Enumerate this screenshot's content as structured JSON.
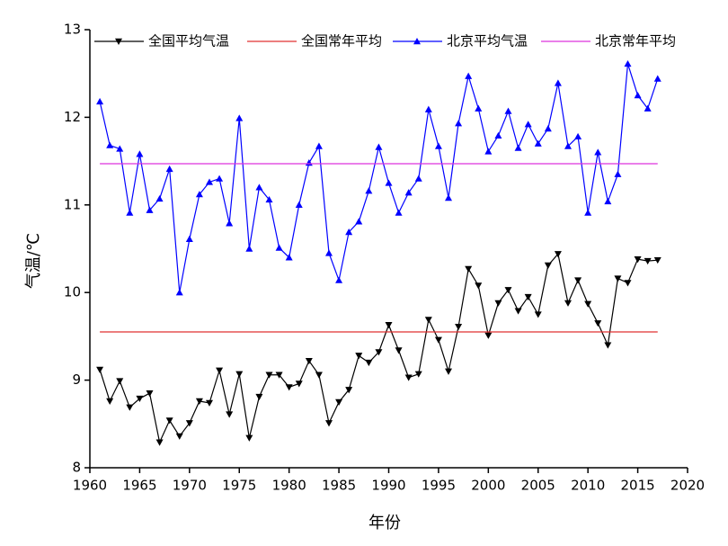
{
  "chart_data": {
    "type": "line",
    "x_label": "年份",
    "y_label": "气温/℃",
    "x": [
      1961,
      1962,
      1963,
      1964,
      1965,
      1966,
      1967,
      1968,
      1969,
      1970,
      1971,
      1972,
      1973,
      1974,
      1975,
      1976,
      1977,
      1978,
      1979,
      1980,
      1981,
      1982,
      1983,
      1984,
      1985,
      1986,
      1987,
      1988,
      1989,
      1990,
      1991,
      1992,
      1993,
      1994,
      1995,
      1996,
      1997,
      1998,
      1999,
      2000,
      2001,
      2002,
      2003,
      2004,
      2005,
      2006,
      2007,
      2008,
      2009,
      2010,
      2011,
      2012,
      2013,
      2014,
      2015,
      2016,
      2017
    ],
    "xlim": [
      1960,
      2020
    ],
    "xticks": [
      1960,
      1965,
      1970,
      1975,
      1980,
      1985,
      1990,
      1995,
      2000,
      2005,
      2010,
      2015,
      2020
    ],
    "ylim": [
      8,
      13
    ],
    "yticks": [
      8,
      9,
      10,
      11,
      12,
      13
    ],
    "grid": false,
    "legend": "top",
    "series": [
      {
        "name": "全国平均气温",
        "color": "#000000",
        "marker": "down",
        "values": [
          9.12,
          8.76,
          8.99,
          8.69,
          8.79,
          8.85,
          8.29,
          8.54,
          8.36,
          8.51,
          8.76,
          8.74,
          9.11,
          8.61,
          9.07,
          8.34,
          8.81,
          9.06,
          9.06,
          8.92,
          8.96,
          9.22,
          9.06,
          8.51,
          8.75,
          8.89,
          9.28,
          9.2,
          9.32,
          9.63,
          9.34,
          9.03,
          9.07,
          9.69,
          9.46,
          9.1,
          9.61,
          10.27,
          10.08,
          9.51,
          9.88,
          10.03,
          9.79,
          9.95,
          9.75,
          10.31,
          10.44,
          9.88,
          10.14,
          9.87,
          9.65,
          9.4,
          10.16,
          10.11,
          10.38,
          10.36,
          10.37
        ]
      },
      {
        "name": "全国常年平均",
        "color": "#e03030",
        "value": 9.55
      },
      {
        "name": "北京平均气温",
        "color": "#0000ff",
        "marker": "up",
        "values": [
          12.18,
          11.68,
          11.64,
          10.91,
          11.58,
          10.94,
          11.07,
          11.41,
          10.0,
          10.61,
          11.12,
          11.26,
          11.3,
          10.79,
          11.99,
          10.5,
          11.2,
          11.06,
          10.51,
          10.4,
          11.0,
          11.48,
          11.67,
          10.45,
          10.14,
          10.69,
          10.81,
          11.16,
          11.66,
          11.25,
          10.91,
          11.14,
          11.3,
          12.09,
          11.67,
          11.08,
          11.93,
          12.47,
          12.1,
          11.61,
          11.79,
          12.07,
          11.65,
          11.92,
          11.7,
          11.87,
          12.39,
          11.67,
          11.78,
          10.91,
          11.6,
          11.04,
          11.35,
          12.61,
          12.25,
          12.1,
          12.44
        ]
      },
      {
        "name": "北京常年平均",
        "color": "#dd33dd",
        "value": 11.47
      }
    ]
  }
}
